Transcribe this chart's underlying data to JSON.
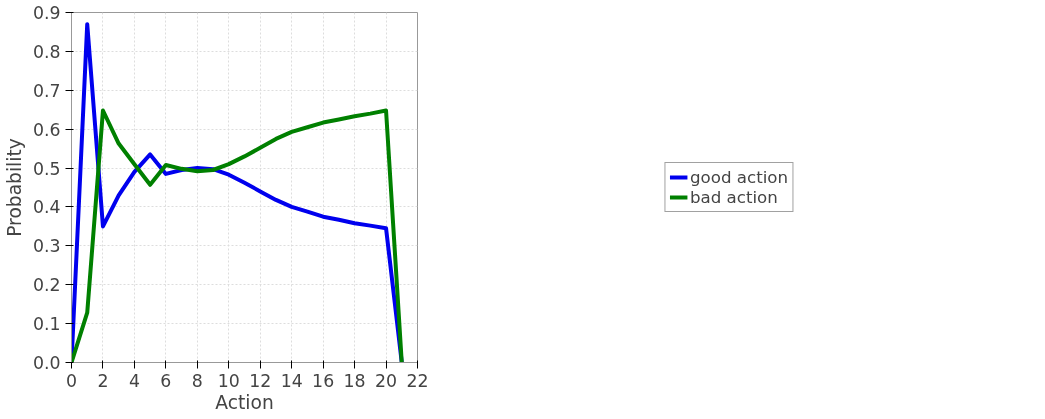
{
  "chart_data": {
    "type": "line",
    "xlabel": "Action",
    "ylabel": "Probability",
    "x": [
      0,
      1,
      2,
      3,
      4,
      5,
      6,
      7,
      8,
      9,
      10,
      11,
      12,
      13,
      14,
      15,
      16,
      17,
      18,
      19,
      20,
      21
    ],
    "series": [
      {
        "name": "good action",
        "color": "#0000ee",
        "values": [
          0,
          0.87,
          0.35,
          0.43,
          0.49,
          0.535,
          0.485,
          0.495,
          0.5,
          0.497,
          0.483,
          0.462,
          0.44,
          0.418,
          0.4,
          0.388,
          0.375,
          0.367,
          0.358,
          0.352,
          0.345,
          0
        ]
      },
      {
        "name": "bad action",
        "color": "#008000",
        "values": [
          0,
          0.128,
          0.648,
          0.563,
          0.51,
          0.457,
          0.508,
          0.498,
          0.492,
          0.495,
          0.51,
          0.53,
          0.552,
          0.575,
          0.593,
          0.605,
          0.617,
          0.625,
          0.633,
          0.64,
          0.648,
          0
        ]
      }
    ],
    "xlim": [
      0,
      22
    ],
    "xticks": [
      0,
      2,
      4,
      6,
      8,
      10,
      12,
      14,
      16,
      18,
      20,
      22
    ],
    "ylim": [
      0,
      0.9
    ],
    "yticks": [
      {
        "value": 0,
        "label": "0.0"
      },
      0.1,
      0.2,
      0.3,
      0.4,
      0.5,
      0.6,
      0.7,
      0.8,
      0.9
    ],
    "grid": true,
    "legend": "right",
    "line_style": "solid",
    "marker": "none"
  }
}
